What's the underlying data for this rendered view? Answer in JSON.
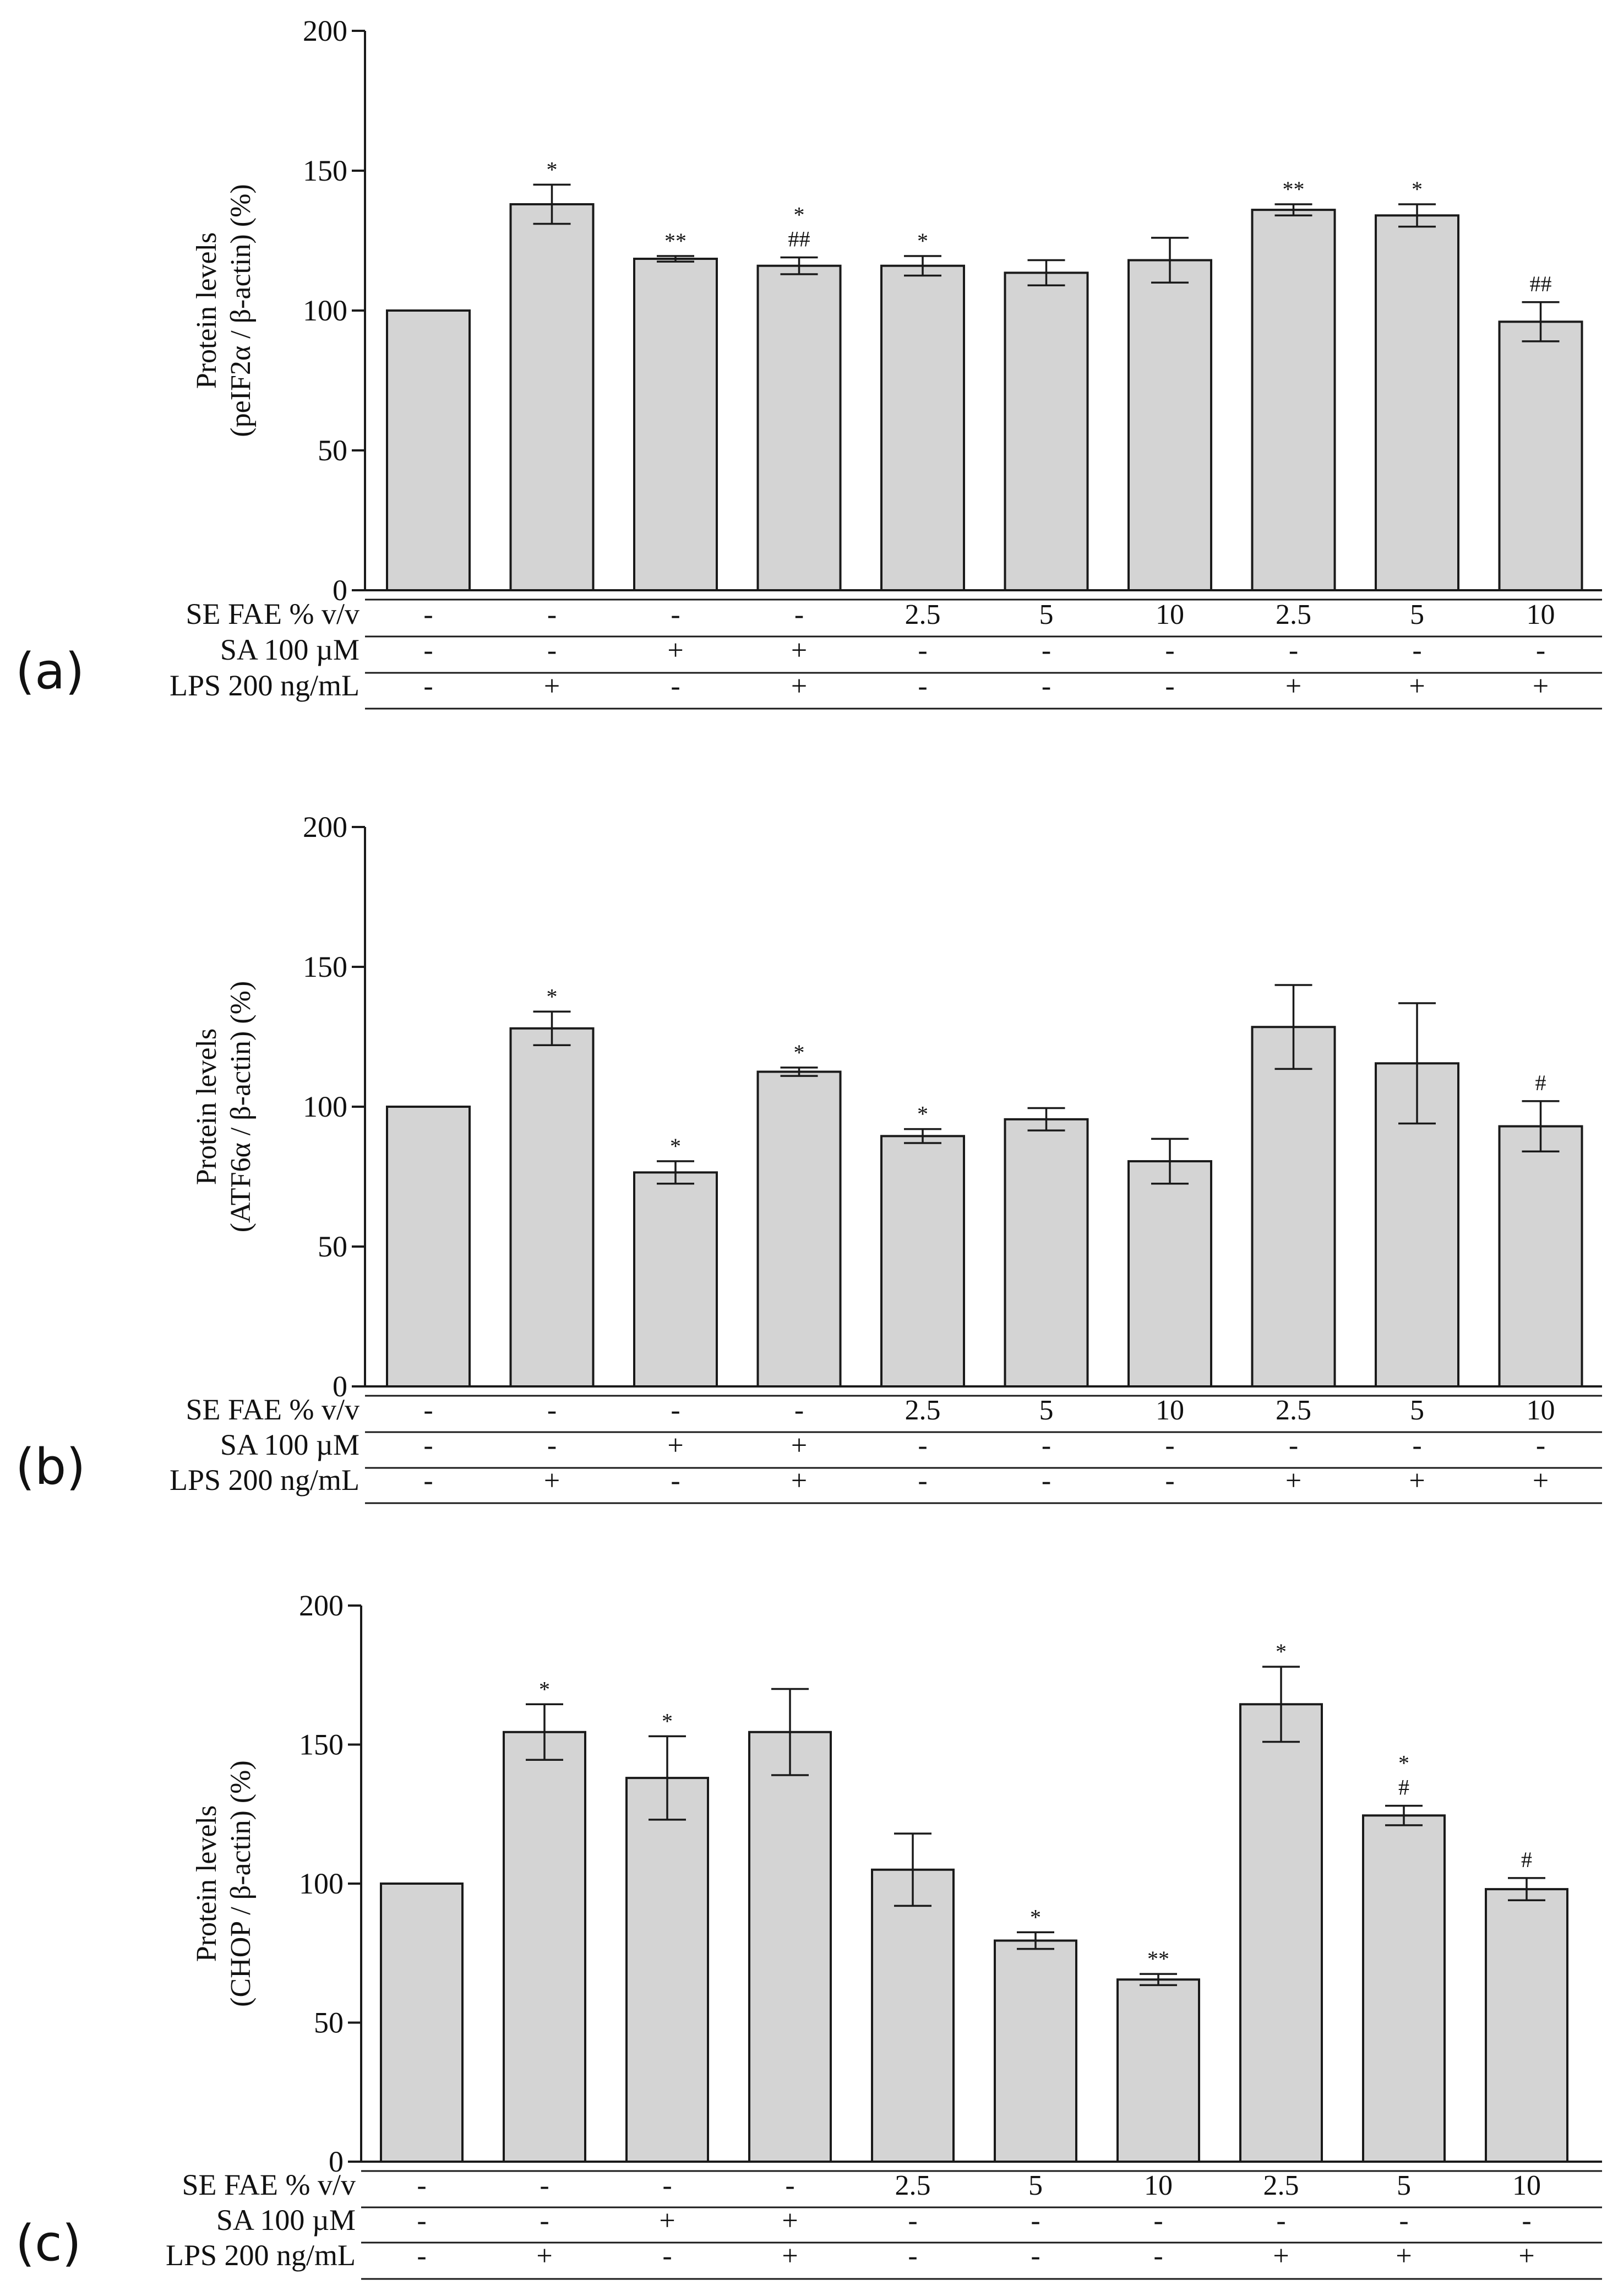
{
  "figure": {
    "type": "bar",
    "row_labels": [
      "SE FAE % v/v",
      "SA 100 µM",
      "LPS 200 ng/mL"
    ],
    "treatments": {
      "se_fae": [
        "-",
        "-",
        "-",
        "-",
        "2.5",
        "5",
        "10",
        "2.5",
        "5",
        "10"
      ],
      "sa": [
        "-",
        "-",
        "+",
        "+",
        "-",
        "-",
        "-",
        "-",
        "-",
        "-"
      ],
      "lps": [
        "-",
        "+",
        "-",
        "+",
        "-",
        "-",
        "-",
        "+",
        "+",
        "+"
      ]
    },
    "colors": {
      "bar_fill": "#d4d4d4",
      "bar_stroke": "#1a1a1a",
      "axis": "#1a1a1a",
      "text": "#111111"
    }
  },
  "chart_data": [
    {
      "type": "bar",
      "panel_label": "(a)",
      "ylabel_line1": "Protein levels",
      "ylabel_line2": "(peIF2α / β-actin) (%)",
      "ylim": [
        0,
        200
      ],
      "yticks": [
        0,
        50,
        100,
        150,
        200
      ],
      "values": [
        100,
        138,
        118.5,
        116,
        116,
        113.5,
        118,
        136,
        134,
        96
      ],
      "errors": [
        0,
        7,
        1,
        3,
        3.5,
        4.5,
        8,
        2,
        4,
        7
      ],
      "sig_star": [
        "",
        "*",
        "**",
        "*",
        "*",
        "",
        "",
        "**",
        "*",
        ""
      ],
      "sig_hash": [
        "",
        "",
        "",
        "##",
        "",
        "",
        "",
        "",
        "",
        "##"
      ]
    },
    {
      "type": "bar",
      "panel_label": "(b)",
      "ylabel_line1": "Protein levels",
      "ylabel_line2": "(ATF6α / β-actin) (%)",
      "ylim": [
        0,
        200
      ],
      "yticks": [
        0,
        50,
        100,
        150,
        200
      ],
      "values": [
        100,
        128,
        76.5,
        112.5,
        89.5,
        95.5,
        80.5,
        128.5,
        115.5,
        93
      ],
      "errors": [
        0,
        6,
        4,
        1.5,
        2.5,
        4,
        8,
        15,
        21.5,
        9
      ],
      "sig_star": [
        "",
        "*",
        "*",
        "*",
        "*",
        "",
        "",
        "",
        "",
        ""
      ],
      "sig_hash": [
        "",
        "",
        "",
        "",
        "",
        "",
        "",
        "",
        "",
        "#"
      ]
    },
    {
      "type": "bar",
      "panel_label": "(c)",
      "ylabel_line1": "Protein levels",
      "ylabel_line2": "(CHOP / β-actin) (%)",
      "ylim": [
        0,
        200
      ],
      "yticks": [
        0,
        50,
        100,
        150,
        200
      ],
      "values": [
        100,
        154.5,
        138,
        154.5,
        105,
        79.5,
        65.5,
        164.5,
        124.5,
        98
      ],
      "errors": [
        0,
        10,
        15,
        15.5,
        13,
        3,
        2,
        13.5,
        3.5,
        4
      ],
      "sig_star": [
        "",
        "*",
        "*",
        "",
        "",
        "*",
        "**",
        "*",
        "*",
        ""
      ],
      "sig_hash": [
        "",
        "",
        "",
        "",
        "",
        "",
        "",
        "",
        "#",
        "#"
      ]
    }
  ]
}
